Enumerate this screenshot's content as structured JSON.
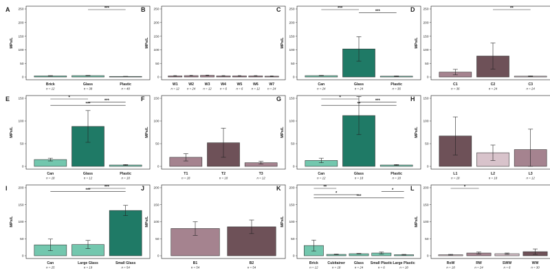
{
  "colors": {
    "teal_light": "#73c7ae",
    "teal_dark": "#1f7a66",
    "mauve_light": "#d8c3cb",
    "mauve_mid": "#a5838f",
    "mauve_dark": "#6e5158",
    "bar_outline": "#333333"
  },
  "chart_data": [
    {
      "panel": "A",
      "type": "bar",
      "ylabel": "MPs/L",
      "ylim": [
        0,
        250
      ],
      "yticks": [
        "0",
        "50",
        "100",
        "150",
        "200",
        "250"
      ],
      "categories": [
        "Brick",
        "Glass",
        "Plastic"
      ],
      "n": [
        "n = 12",
        "n = 38",
        "n = 48"
      ],
      "values": [
        4,
        5,
        2
      ],
      "errors": [
        1,
        1,
        0.5
      ],
      "colors": [
        "teal_light",
        "teal_light",
        "teal_light"
      ],
      "comparisons": [
        {
          "from": 1,
          "to": 2,
          "label": "***"
        }
      ]
    },
    {
      "panel": "B",
      "type": "bar",
      "ylabel": "MPs/L",
      "ylim": [
        0,
        250
      ],
      "yticks": [
        "0",
        "50",
        "100",
        "150",
        "200",
        "250"
      ],
      "categories": [
        "W1",
        "W2",
        "W3",
        "W4",
        "W5",
        "W6",
        "W7"
      ],
      "n": [
        "n = 12",
        "n = 24",
        "n = 12",
        "n = 6",
        "n = 6",
        "n = 12",
        "n = 24"
      ],
      "values": [
        4,
        5,
        6,
        4,
        4,
        4,
        3
      ],
      "errors": [
        1,
        1,
        1,
        1,
        1,
        1,
        1
      ],
      "colors": [
        "mauve_mid",
        "mauve_mid",
        "mauve_mid",
        "mauve_mid",
        "mauve_mid",
        "mauve_mid",
        "mauve_mid"
      ],
      "comparisons": []
    },
    {
      "panel": "C",
      "type": "bar",
      "ylabel": "MPs/L",
      "ylim": [
        0,
        250
      ],
      "yticks": [
        "0",
        "50",
        "100",
        "150",
        "200",
        "250"
      ],
      "categories": [
        "Can",
        "Glass",
        "Plastic"
      ],
      "n": [
        "n = 24",
        "n = 24",
        "n = 36"
      ],
      "values": [
        5,
        103,
        3
      ],
      "errors": [
        1,
        45,
        1
      ],
      "colors": [
        "teal_light",
        "teal_dark",
        "teal_light"
      ],
      "comparisons": [
        {
          "from": 0,
          "to": 1,
          "label": "***"
        },
        {
          "from": 1,
          "to": 2,
          "label": "***"
        }
      ]
    },
    {
      "panel": "D",
      "type": "bar",
      "ylabel": "MPs/L",
      "ylim": [
        0,
        250
      ],
      "yticks": [
        "0",
        "50",
        "100",
        "150",
        "200",
        "250"
      ],
      "categories": [
        "C1",
        "C2",
        "C3"
      ],
      "n": [
        "n = 36",
        "n = 24",
        "n = 24"
      ],
      "values": [
        18,
        77,
        3
      ],
      "errors": [
        10,
        48,
        1
      ],
      "colors": [
        "mauve_mid",
        "mauve_dark",
        "mauve_light"
      ],
      "comparisons": [
        {
          "from": 1,
          "to": 2,
          "label": "**"
        }
      ]
    },
    {
      "panel": "E",
      "type": "bar",
      "ylabel": "MPs/L",
      "ylim": [
        0,
        150
      ],
      "yticks": [
        "0",
        "50",
        "100",
        "150"
      ],
      "categories": [
        "Can",
        "Glass",
        "Plastic"
      ],
      "n": [
        "n = 18",
        "n = 12",
        "n = 18"
      ],
      "values": [
        15,
        88,
        3
      ],
      "errors": [
        3,
        35,
        1
      ],
      "colors": [
        "teal_light",
        "teal_dark",
        "teal_light"
      ],
      "comparisons": [
        {
          "from": 0,
          "to": 1,
          "label": "*"
        },
        {
          "from": 1,
          "to": 2,
          "label": "***"
        },
        {
          "from": 0,
          "to": 2,
          "label": "***"
        }
      ]
    },
    {
      "panel": "F",
      "type": "bar",
      "ylabel": "MPs/L",
      "ylim": [
        0,
        150
      ],
      "yticks": [
        "0",
        "50",
        "100",
        "150"
      ],
      "categories": [
        "T1",
        "T2",
        "T3"
      ],
      "n": [
        "n = 18",
        "n = 18",
        "n = 12"
      ],
      "values": [
        20,
        52,
        8
      ],
      "errors": [
        8,
        32,
        3
      ],
      "colors": [
        "mauve_mid",
        "mauve_dark",
        "mauve_mid"
      ],
      "comparisons": []
    },
    {
      "panel": "G",
      "type": "bar",
      "ylabel": "MPs/L",
      "ylim": [
        0,
        150
      ],
      "yticks": [
        "0",
        "50",
        "100",
        "150"
      ],
      "categories": [
        "Can",
        "Glass",
        "Plastic"
      ],
      "n": [
        "n = 12",
        "n = 18",
        "n = 18"
      ],
      "values": [
        13,
        112,
        3
      ],
      "errors": [
        5,
        42,
        1
      ],
      "colors": [
        "teal_light",
        "teal_dark",
        "teal_light"
      ],
      "comparisons": [
        {
          "from": 0,
          "to": 1,
          "label": "*"
        },
        {
          "from": 1,
          "to": 2,
          "label": "***"
        },
        {
          "from": 0,
          "to": 2,
          "label": "**"
        }
      ]
    },
    {
      "panel": "H",
      "type": "bar",
      "ylabel": "MPs/L",
      "ylim": [
        0,
        150
      ],
      "yticks": [
        "0",
        "50",
        "100",
        "150"
      ],
      "categories": [
        "L1",
        "L2",
        "L3"
      ],
      "n": [
        "n = 18",
        "n = 18",
        "n = 12"
      ],
      "values": [
        67,
        30,
        37
      ],
      "errors": [
        42,
        17,
        45
      ],
      "colors": [
        "mauve_dark",
        "mauve_light",
        "mauve_mid"
      ],
      "comparisons": []
    },
    {
      "panel": "I",
      "type": "bar",
      "ylabel": "MPs/L",
      "ylim": [
        0,
        200
      ],
      "yticks": [
        "0",
        "50",
        "100",
        "150",
        "200"
      ],
      "categories": [
        "Can",
        "Large Glass",
        "Small Glass"
      ],
      "n": [
        "n = 25",
        "n = 19",
        "n = 54"
      ],
      "values": [
        32,
        33,
        133
      ],
      "errors": [
        17,
        12,
        15
      ],
      "colors": [
        "teal_light",
        "teal_light",
        "teal_dark"
      ],
      "comparisons": [
        {
          "from": 1,
          "to": 2,
          "label": "***"
        },
        {
          "from": 0,
          "to": 2,
          "label": "***"
        }
      ]
    },
    {
      "panel": "J",
      "type": "bar",
      "ylabel": "MPs/L",
      "ylim": [
        0,
        200
      ],
      "yticks": [
        "0",
        "50",
        "100",
        "150",
        "200"
      ],
      "categories": [
        "B1",
        "B2"
      ],
      "n": [
        "n = 54",
        "n = 54"
      ],
      "values": [
        80,
        85
      ],
      "errors": [
        20,
        20
      ],
      "colors": [
        "mauve_mid",
        "mauve_dark"
      ],
      "comparisons": []
    },
    {
      "panel": "K",
      "type": "bar",
      "ylabel": "MPs/L",
      "ylim": [
        0,
        200
      ],
      "yticks": [
        "0",
        "50",
        "100",
        "150",
        "200"
      ],
      "categories": [
        "Brick",
        "Cubitainer",
        "Glass",
        "Small Plastic",
        "Large Plastic"
      ],
      "n": [
        "n = 12",
        "n = 18",
        "n = 24",
        "n = 6",
        "n = 18"
      ],
      "values": [
        30,
        4,
        6,
        8,
        3
      ],
      "errors": [
        16,
        1,
        1,
        3,
        1
      ],
      "colors": [
        "teal_light",
        "teal_light",
        "teal_light",
        "teal_light",
        "teal_light"
      ],
      "comparisons": [
        {
          "from": 0,
          "to": 1,
          "label": "**"
        },
        {
          "from": 3,
          "to": 4,
          "label": "*"
        },
        {
          "from": 0,
          "to": 2,
          "label": "*"
        },
        {
          "from": 0,
          "to": 4,
          "label": "***"
        }
      ]
    },
    {
      "panel": "L",
      "type": "bar",
      "ylabel": "MPs/L",
      "ylim": [
        0,
        200
      ],
      "yticks": [
        "0",
        "50",
        "100",
        "150",
        "200"
      ],
      "categories": [
        "RoW",
        "RW",
        "SWW",
        "WW"
      ],
      "n": [
        "n = 18",
        "n = 24",
        "n = 6",
        "n = 30"
      ],
      "values": [
        3,
        8,
        6,
        12
      ],
      "errors": [
        1,
        3,
        2,
        8
      ],
      "colors": [
        "mauve_light",
        "mauve_mid",
        "mauve_light",
        "mauve_dark"
      ],
      "comparisons": [
        {
          "from": 0,
          "to": 1,
          "label": "*"
        }
      ]
    }
  ]
}
